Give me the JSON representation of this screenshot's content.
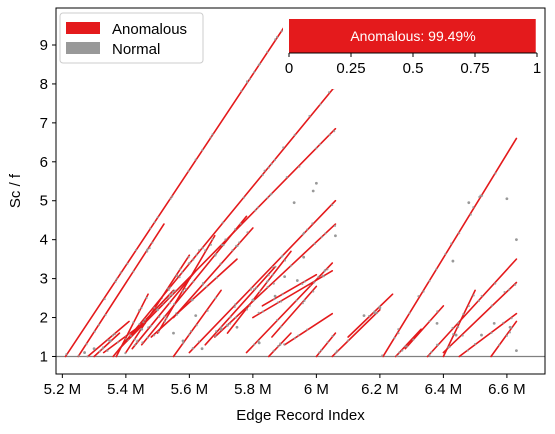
{
  "chart_data": {
    "type": "scatter",
    "xlabel": "Edge Record Index",
    "ylabel": "Sc / f",
    "x_unit_label": "M",
    "xlim": [
      5.18,
      6.72
    ],
    "ylim": [
      0.55,
      9.95
    ],
    "x_ticks": [
      5.2,
      5.4,
      5.6,
      5.8,
      6.0,
      6.2,
      6.4,
      6.6
    ],
    "x_tick_labels": [
      "5.2 M",
      "5.4 M",
      "5.6 M",
      "5.8 M",
      "6 M",
      "6.2 M",
      "6.4 M",
      "6.6 M"
    ],
    "y_ticks": [
      1,
      2,
      3,
      4,
      5,
      6,
      7,
      8,
      9
    ],
    "y_tick_labels": [
      "1",
      "2",
      "3",
      "4",
      "5",
      "6",
      "7",
      "8",
      "9"
    ],
    "reference_line_y": 1,
    "legend": {
      "placement": "top-left",
      "entries": [
        {
          "label": "Anomalous",
          "color": "#e41a1c"
        },
        {
          "label": "Normal",
          "color": "#999999"
        }
      ]
    },
    "colors": {
      "anomalous": "#e41a1c",
      "normal": "#999999",
      "reference": "#808080"
    },
    "inset": {
      "type": "bar",
      "label": "Anomalous: 99.49%",
      "value": 0.9949,
      "xlim": [
        0,
        1
      ],
      "ticks": [
        0,
        0.25,
        0.5,
        0.75,
        1
      ],
      "tick_labels": [
        "0",
        "0.25",
        "0.5",
        "0.75",
        "1"
      ]
    },
    "segments": [
      [
        5.21,
        1.0,
        5.91,
        9.6
      ],
      [
        5.25,
        1.0,
        5.52,
        4.4
      ],
      [
        5.28,
        1.0,
        5.41,
        1.9
      ],
      [
        5.3,
        1.0,
        5.38,
        1.6
      ],
      [
        5.33,
        1.1,
        5.43,
        1.7
      ],
      [
        5.36,
        1.0,
        6.06,
        7.95
      ],
      [
        5.37,
        1.0,
        5.47,
        2.6
      ],
      [
        5.38,
        1.2,
        6.06,
        6.85
      ],
      [
        5.4,
        1.1,
        5.6,
        3.6
      ],
      [
        5.4,
        1.4,
        5.55,
        2.7
      ],
      [
        5.42,
        1.2,
        5.62,
        3.2
      ],
      [
        5.45,
        1.3,
        5.78,
        4.6
      ],
      [
        5.48,
        1.5,
        5.75,
        3.5
      ],
      [
        5.5,
        1.6,
        5.68,
        4.1
      ],
      [
        5.55,
        1.0,
        5.7,
        2.7
      ],
      [
        5.55,
        2.0,
        5.8,
        4.3
      ],
      [
        5.6,
        1.1,
        6.06,
        5.0
      ],
      [
        5.65,
        1.3,
        5.87,
        3.3
      ],
      [
        5.68,
        1.5,
        6.06,
        4.4
      ],
      [
        5.72,
        1.6,
        5.92,
        3.7
      ],
      [
        5.78,
        1.1,
        6.05,
        3.4
      ],
      [
        5.8,
        2.0,
        6.05,
        3.2
      ],
      [
        5.83,
        2.3,
        6.0,
        3.1
      ],
      [
        5.86,
        1.5,
        6.0,
        2.8
      ],
      [
        5.9,
        1.3,
        6.05,
        2.1
      ],
      [
        5.85,
        1.0,
        5.92,
        1.6
      ],
      [
        6.0,
        1.0,
        6.06,
        1.6
      ],
      [
        6.05,
        1.0,
        6.2,
        2.2
      ],
      [
        6.1,
        1.5,
        6.24,
        2.6
      ],
      [
        6.21,
        1.0,
        6.63,
        6.6
      ],
      [
        6.25,
        1.0,
        6.33,
        1.7
      ],
      [
        6.28,
        1.2,
        6.4,
        2.3
      ],
      [
        6.4,
        1.0,
        6.5,
        2.7
      ],
      [
        6.35,
        1.0,
        6.63,
        3.5
      ],
      [
        6.4,
        1.1,
        6.63,
        2.9
      ],
      [
        6.45,
        1.0,
        6.63,
        2.1
      ],
      [
        6.55,
        1.0,
        6.63,
        1.9
      ]
    ],
    "normal_points": [
      [
        6.0,
        5.45
      ],
      [
        5.99,
        5.25
      ],
      [
        6.6,
        5.05
      ],
      [
        6.48,
        4.95
      ],
      [
        5.93,
        4.95
      ],
      [
        6.06,
        4.1
      ],
      [
        6.63,
        4.0
      ],
      [
        6.43,
        3.45
      ],
      [
        5.96,
        3.55
      ],
      [
        5.94,
        2.95
      ],
      [
        5.9,
        3.05
      ],
      [
        5.87,
        2.55
      ],
      [
        5.8,
        2.45
      ],
      [
        5.82,
        1.35
      ],
      [
        5.75,
        1.75
      ],
      [
        5.72,
        1.8
      ],
      [
        5.7,
        1.7
      ],
      [
        5.62,
        2.05
      ],
      [
        5.55,
        1.6
      ],
      [
        5.5,
        2.2
      ],
      [
        5.45,
        1.7
      ],
      [
        5.35,
        1.4
      ],
      [
        5.3,
        1.2
      ],
      [
        5.27,
        1.1
      ],
      [
        6.38,
        1.85
      ],
      [
        6.44,
        1.55
      ],
      [
        6.52,
        1.55
      ],
      [
        6.56,
        1.85
      ],
      [
        6.61,
        1.75
      ],
      [
        6.63,
        1.15
      ],
      [
        6.15,
        2.05
      ],
      [
        6.2,
        2.25
      ],
      [
        5.64,
        1.2
      ],
      [
        5.58,
        1.4
      ]
    ]
  }
}
